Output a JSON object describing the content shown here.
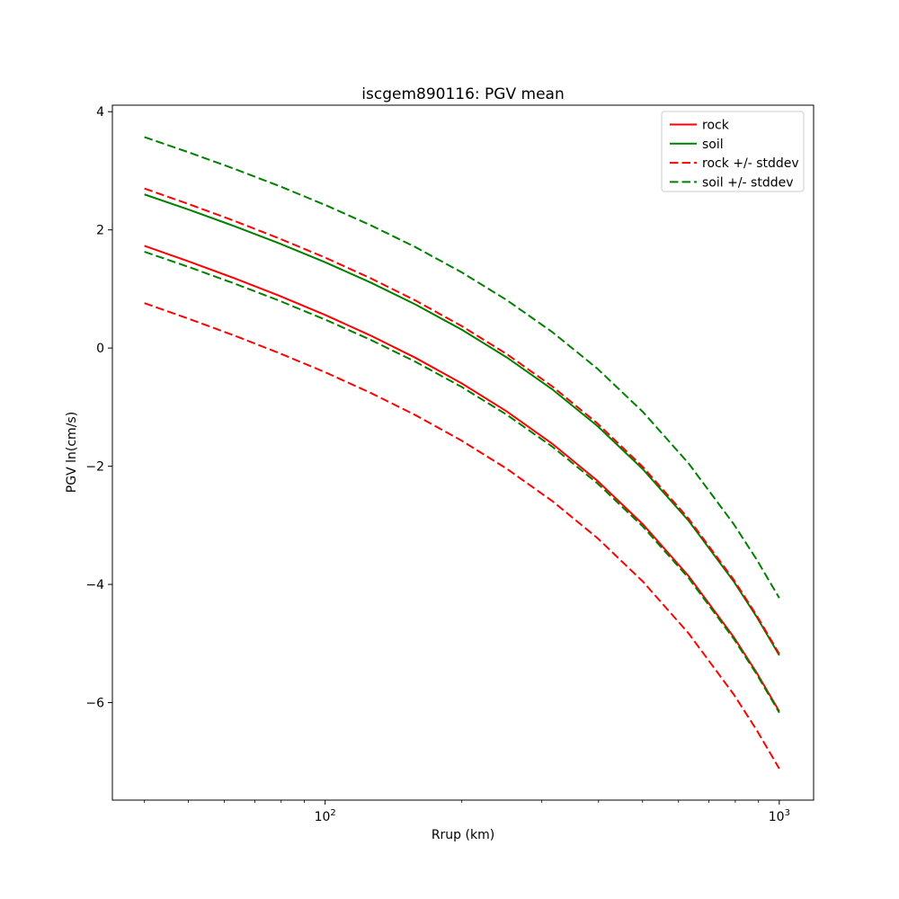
{
  "chart_data": {
    "type": "line",
    "title": "iscgem890116: PGV mean",
    "xlabel": "Rrup (km)",
    "ylabel": "PGV ln(cm/s)",
    "xscale": "log",
    "yscale": "linear",
    "xlim": [
      34,
      1190
    ],
    "ylim": [
      -7.65,
      4.11
    ],
    "grid": false,
    "x": [
      40,
      50,
      63,
      79,
      100,
      126,
      158,
      200,
      251,
      316,
      398,
      501,
      631,
      794,
      891,
      1000
    ],
    "series": [
      {
        "name": "rock",
        "label": "rock",
        "color": "#ff0000",
        "linestyle": "solid",
        "values": [
          1.73,
          1.468,
          1.184,
          0.889,
          0.561,
          0.211,
          -0.164,
          -0.599,
          -1.071,
          -1.616,
          -2.247,
          -2.983,
          -3.855,
          -4.892,
          -5.49,
          -6.147
        ]
      },
      {
        "name": "soil",
        "label": "soil",
        "color": "#008000",
        "linestyle": "solid",
        "values": [
          2.6,
          2.344,
          2.065,
          1.776,
          1.452,
          1.108,
          0.739,
          0.31,
          -0.157,
          -0.696,
          -1.321,
          -2.052,
          -2.919,
          -3.951,
          -4.545,
          -5.2
        ]
      },
      {
        "name": "rock_plus_stddev",
        "label": "rock +/- stddev",
        "color": "#ff0000",
        "linestyle": "dashed",
        "values": [
          2.7,
          2.438,
          2.154,
          1.859,
          1.531,
          1.181,
          0.806,
          0.371,
          -0.101,
          -0.646,
          -1.277,
          -2.013,
          -2.885,
          -3.922,
          -4.52,
          -5.177
        ]
      },
      {
        "name": "rock_minus_stddev",
        "label": "",
        "color": "#ff0000",
        "linestyle": "dashed",
        "values": [
          0.76,
          0.498,
          0.214,
          -0.081,
          -0.409,
          -0.759,
          -1.134,
          -1.569,
          -2.041,
          -2.586,
          -3.217,
          -3.953,
          -4.825,
          -5.862,
          -6.46,
          -7.117
        ]
      },
      {
        "name": "soil_plus_stddev",
        "label": "",
        "color": "#008000",
        "linestyle": "dashed",
        "values": [
          3.57,
          3.314,
          3.035,
          2.746,
          2.422,
          2.078,
          1.709,
          1.28,
          0.813,
          0.274,
          -0.351,
          -1.082,
          -1.949,
          -2.981,
          -3.575,
          -4.23
        ]
      },
      {
        "name": "soil_minus_stddev",
        "label": "",
        "color": "#008000",
        "linestyle": "dashed",
        "values": [
          1.63,
          1.374,
          1.095,
          0.806,
          0.482,
          0.138,
          -0.231,
          -0.66,
          -1.127,
          -1.666,
          -2.291,
          -3.022,
          -3.889,
          -4.921,
          -5.515,
          -6.17
        ]
      }
    ],
    "stddev": {
      "rock": 0.97,
      "soil": 0.97
    },
    "yticks": [
      {
        "value": -6,
        "label": "−6"
      },
      {
        "value": -4,
        "label": "−4"
      },
      {
        "value": -2,
        "label": "−2"
      },
      {
        "value": 0,
        "label": "0"
      },
      {
        "value": 2,
        "label": "2"
      },
      {
        "value": 4,
        "label": "4"
      }
    ],
    "xticks": [
      {
        "value": 100,
        "label": "10^2"
      },
      {
        "value": 1000,
        "label": "10^3"
      }
    ],
    "xminorticks": [
      40,
      50,
      60,
      70,
      80,
      90,
      200,
      300,
      400,
      500,
      600,
      700,
      800,
      900
    ],
    "legend": {
      "position": "upper-right",
      "border_color": "#cccccc",
      "background_color": "#ffffff",
      "entries": [
        {
          "label": "rock",
          "color": "#ff0000",
          "linestyle": "solid"
        },
        {
          "label": "soil",
          "color": "#008000",
          "linestyle": "solid"
        },
        {
          "label": "rock +/- stddev",
          "color": "#ff0000",
          "linestyle": "dashed"
        },
        {
          "label": "soil +/- stddev",
          "color": "#008000",
          "linestyle": "dashed"
        }
      ]
    }
  }
}
